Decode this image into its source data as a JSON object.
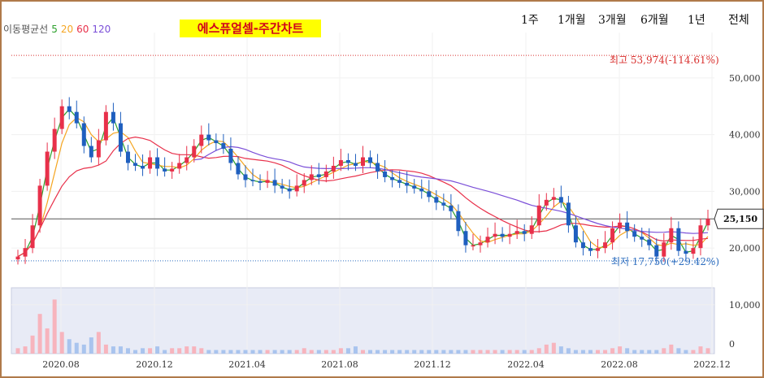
{
  "header": {
    "ma_legend_label": "이동평균선",
    "ma_periods": [
      {
        "label": "5",
        "color": "#2ca02c"
      },
      {
        "label": "20",
        "color": "#f5a623"
      },
      {
        "label": "60",
        "color": "#e8304a"
      },
      {
        "label": "120",
        "color": "#7b4fd8"
      }
    ],
    "title": "에스퓨얼셀-주간차트",
    "periods": [
      "1주",
      "1개월",
      "3개월",
      "6개월",
      "1년",
      "전체"
    ]
  },
  "annotations": {
    "high_label": "최고 53,974(-114.61%)",
    "low_label": "최저 17,750(+29.42%)",
    "current_price": "25,150"
  },
  "chart_data": {
    "type": "candlestick",
    "y_axis": {
      "min": 10000,
      "max": 55000,
      "ticks": [
        "50,000",
        "40,000",
        "30,000",
        "20,000",
        "10,000"
      ],
      "tick_values": [
        50000,
        40000,
        30000,
        20000,
        10000
      ]
    },
    "x_axis": {
      "ticks": [
        "2020.08",
        "2020.12",
        "2021.04",
        "2021.08",
        "2021.12",
        "2022.04",
        "2022.08",
        "2022.12"
      ]
    },
    "high_value": 53974,
    "low_value": 17750,
    "current_value": 25150,
    "volume_axis_label": "0",
    "colors": {
      "up": "#e8304a",
      "down": "#1f5fbf",
      "ma5": "#2ca02c",
      "ma20": "#f5a623",
      "ma60": "#e8304a",
      "ma120": "#7b4fd8"
    },
    "closes": [
      18500,
      20000,
      24000,
      31000,
      37000,
      41000,
      45000,
      44000,
      42000,
      38000,
      36000,
      39000,
      44000,
      42000,
      37000,
      35000,
      34500,
      34000,
      36000,
      34000,
      33500,
      34000,
      35000,
      36000,
      38000,
      40000,
      39000,
      38500,
      37500,
      35000,
      33000,
      32000,
      31800,
      31500,
      32000,
      31000,
      30500,
      30000,
      31000,
      32000,
      33000,
      32500,
      33500,
      34500,
      35500,
      35000,
      34500,
      36000,
      35000,
      33500,
      32500,
      32000,
      31500,
      31000,
      30500,
      30000,
      29000,
      28000,
      27500,
      26500,
      23000,
      20500,
      20500,
      21000,
      22000,
      22500,
      22000,
      22500,
      23000,
      22500,
      24000,
      27500,
      28500,
      29000,
      28000,
      24000,
      21000,
      20000,
      19500,
      20000,
      21000,
      23500,
      24500,
      23000,
      22000,
      21500,
      20500,
      18500,
      21000,
      23500,
      19500,
      19000,
      20000,
      24000,
      25150
    ]
  },
  "volume_bars": [
    3,
    4,
    10,
    22,
    14,
    30,
    12,
    8,
    6,
    5,
    9,
    12,
    5,
    4,
    4,
    3,
    2,
    3,
    3,
    4,
    2,
    3,
    3,
    4,
    4,
    3,
    2,
    2,
    2,
    2,
    2,
    2,
    2,
    2,
    2,
    2,
    2,
    2,
    2,
    3,
    2,
    2,
    2,
    2,
    3,
    3,
    4,
    2,
    2,
    2,
    2,
    2,
    2,
    2,
    2,
    2,
    2,
    2,
    2,
    2,
    2,
    2,
    2,
    2,
    2,
    2,
    2,
    2,
    2,
    2,
    2,
    3,
    5,
    6,
    4,
    3,
    2,
    2,
    2,
    2,
    2,
    3,
    4,
    3,
    2,
    2,
    2,
    2,
    3,
    5,
    3,
    2,
    2,
    4,
    3
  ]
}
